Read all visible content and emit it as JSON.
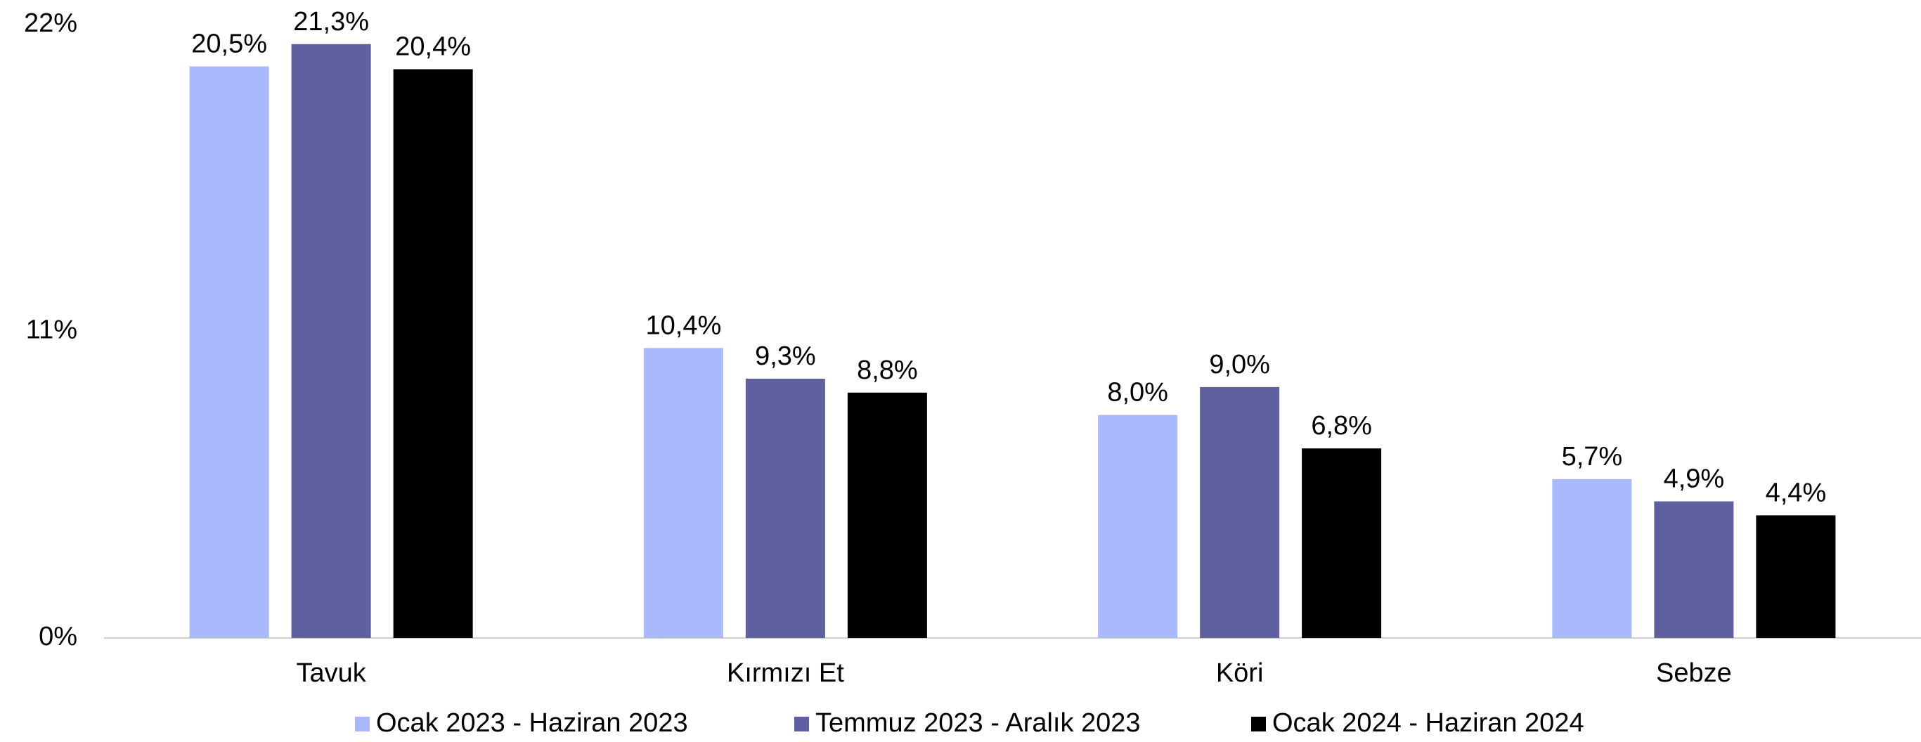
{
  "chart_data": {
    "type": "bar",
    "categories": [
      "Tavuk",
      "Kırmızı Et",
      "Köri",
      "Sebze"
    ],
    "series": [
      {
        "name": "Ocak 2023 - Haziran 2023",
        "color": "#aab9fb",
        "values": [
          20.5,
          10.4,
          8.0,
          5.7
        ],
        "value_labels": [
          "20,5%",
          "10,4%",
          "8,0%",
          "5,7%"
        ]
      },
      {
        "name": "Temmuz 2023 - Aralık 2023",
        "color": "#5f60a0",
        "values": [
          21.3,
          9.3,
          9.0,
          4.9
        ],
        "value_labels": [
          "21,3%",
          "9,3%",
          "9,0%",
          "4,9%"
        ]
      },
      {
        "name": "Ocak 2024 - Haziran 2024",
        "color": "#000000",
        "values": [
          20.4,
          8.8,
          6.8,
          4.4
        ],
        "value_labels": [
          "20,4%",
          "8,8%",
          "6,8%",
          "4,4%"
        ]
      }
    ],
    "ylim": [
      0,
      22
    ],
    "yticks": [
      {
        "value": 0,
        "label": "0%"
      },
      {
        "value": 11,
        "label": "11%"
      },
      {
        "value": 22,
        "label": "22%"
      }
    ],
    "grid": false,
    "legend": "bottom"
  }
}
